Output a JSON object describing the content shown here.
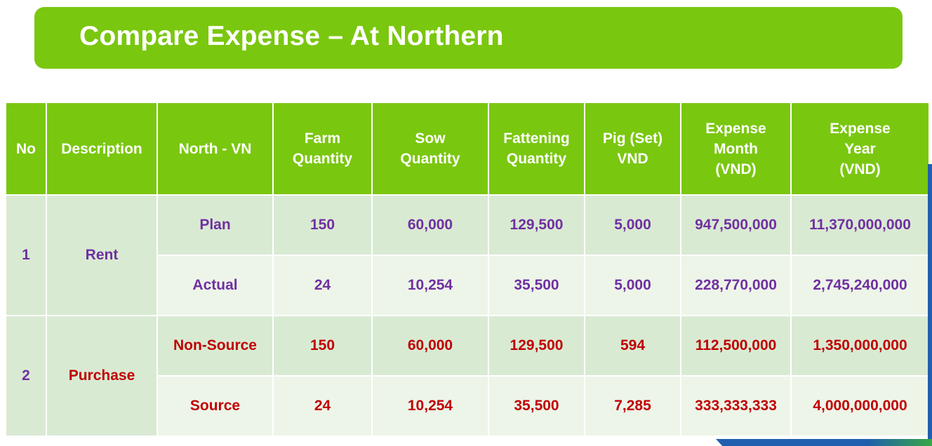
{
  "title": "Compare Expense – At Northern",
  "headers": [
    [
      "No"
    ],
    [
      "Description"
    ],
    [
      "North - VN"
    ],
    [
      "Farm",
      "Quantity"
    ],
    [
      "Sow",
      "Quantity"
    ],
    [
      "Fattening",
      "Quantity"
    ],
    [
      "Pig (Set)",
      "VND"
    ],
    [
      "Expense",
      "Month",
      "(VND)"
    ],
    [
      "Expense",
      "Year",
      "(VND)"
    ]
  ],
  "groups": [
    {
      "no": "1",
      "description": "Rent",
      "color": "#7030a0",
      "rows": [
        {
          "label": "Plan",
          "farm": "150",
          "sow": "60,000",
          "fattening": "129,500",
          "pig": "5,000",
          "expense_month": "947,500,000",
          "expense_year": "11,370,000,000"
        },
        {
          "label": "Actual",
          "farm": "24",
          "sow": "10,254",
          "fattening": "35,500",
          "pig": "5,000",
          "expense_month": "228,770,000",
          "expense_year": "2,745,240,000"
        }
      ]
    },
    {
      "no": "2",
      "description": "Purchase",
      "color": "#c00000",
      "rows": [
        {
          "label": "Non-Source",
          "farm": "150",
          "sow": "60,000",
          "fattening": "129,500",
          "pig": "594",
          "expense_month": "112,500,000",
          "expense_year": "1,350,000,000"
        },
        {
          "label": "Source",
          "farm": "24",
          "sow": "10,254",
          "fattening": "35,500",
          "pig": "7,285",
          "expense_month": "333,333,333",
          "expense_year": "4,000,000,000"
        }
      ]
    }
  ],
  "colors": {
    "header_green": "#7ac70f",
    "row_dark": "#d9ead3",
    "row_light": "#edf5e9",
    "rent_purple": "#7030a0",
    "purchase_red": "#c00000"
  }
}
